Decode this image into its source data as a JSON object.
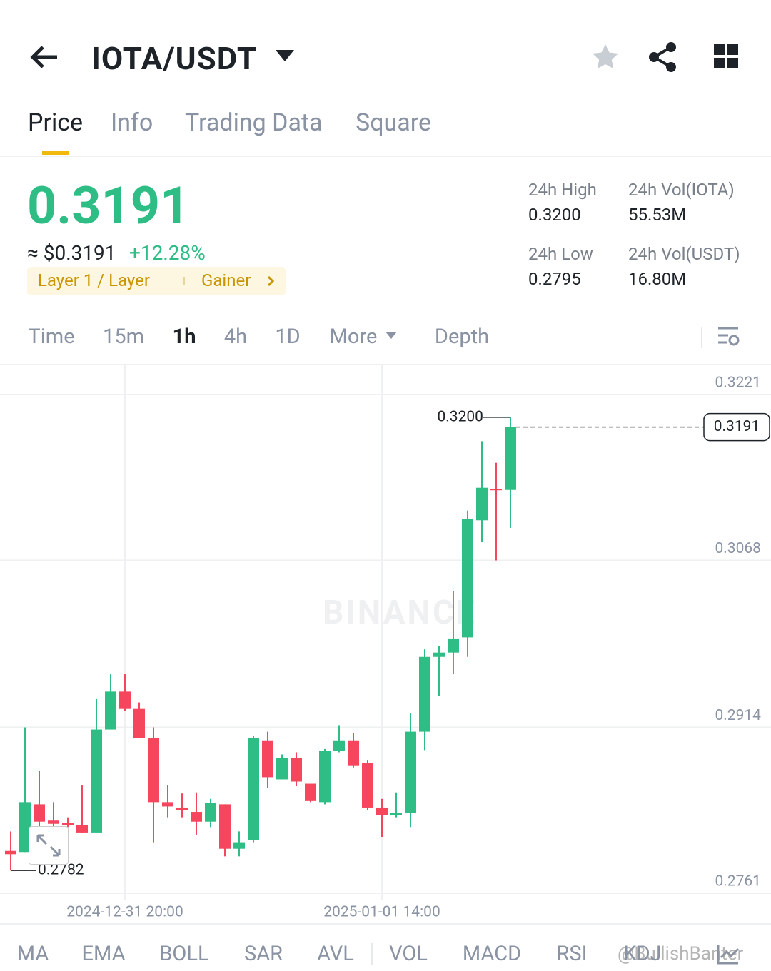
{
  "header": {
    "title": "IOTA/USDT"
  },
  "tabs": [
    "Price",
    "Info",
    "Trading Data",
    "Square"
  ],
  "ticker": {
    "price": "0.3191",
    "usd_price": "≈ $0.3191",
    "change": "+12.28%",
    "tags": [
      "Layer 1 / Layer",
      "Gainer"
    ],
    "stats": [
      {
        "label": "24h High",
        "value": "0.3200"
      },
      {
        "label": "24h Vol(IOTA)",
        "value": "55.53M"
      },
      {
        "label": "24h Low",
        "value": "0.2795"
      },
      {
        "label": "24h Vol(USDT)",
        "value": "16.80M"
      }
    ]
  },
  "intervals": [
    "Time",
    "15m",
    "1h",
    "4h",
    "1D",
    "More",
    "Depth"
  ],
  "indicators": [
    "MA",
    "EMA",
    "BOLL",
    "SAR",
    "AVL",
    "VOL",
    "MACD",
    "RSI",
    "KDJ"
  ],
  "watermark": "@BullishBanter",
  "chart_data": {
    "type": "candlestick",
    "watermark": "BINANCE",
    "categories": [
      null,
      null,
      null,
      null,
      null,
      null,
      null,
      null,
      "2024-12-31 20:00",
      null,
      null,
      null,
      null,
      null,
      null,
      null,
      null,
      null,
      null,
      null,
      null,
      null,
      null,
      null,
      null,
      null,
      "2025-01-01 14:00",
      null,
      null,
      null,
      null,
      null,
      null,
      null,
      null,
      null
    ],
    "open": [
      0.28,
      0.2799,
      0.2843,
      0.2828,
      0.2826,
      0.2824,
      0.2817,
      0.2912,
      0.2947,
      0.2931,
      0.2904,
      0.2845,
      0.284,
      0.2836,
      0.2827,
      0.2843,
      0.2802,
      0.281,
      0.2902,
      0.2866,
      0.2886,
      0.2862,
      0.2845,
      0.2892,
      0.2902,
      0.2881,
      0.284,
      0.2833,
      0.2835,
      0.291,
      0.2979,
      0.2983,
      0.2997,
      0.3105,
      0.3134,
      0.3133
    ],
    "high": [
      0.2818,
      0.2914,
      0.2874,
      0.2845,
      0.2831,
      0.2861,
      0.294,
      0.2963,
      0.2963,
      0.2937,
      0.2914,
      0.2861,
      0.2853,
      0.2854,
      0.2848,
      0.2843,
      0.2818,
      0.2906,
      0.291,
      0.2889,
      0.2891,
      0.2862,
      0.2894,
      0.2916,
      0.2909,
      0.2884,
      0.2848,
      0.2854,
      0.2927,
      0.2986,
      0.2989,
      0.304,
      0.3114,
      0.3178,
      0.3158,
      0.32
    ],
    "low": [
      0.2782,
      0.2799,
      0.2822,
      0.2822,
      0.2822,
      0.2817,
      0.2817,
      0.2912,
      0.2929,
      0.2904,
      0.2808,
      0.2831,
      0.2831,
      0.2815,
      0.2822,
      0.2795,
      0.2795,
      0.2808,
      0.2858,
      0.2866,
      0.286,
      0.2845,
      0.2843,
      0.2891,
      0.2877,
      0.2838,
      0.2813,
      0.2831,
      0.2822,
      0.2893,
      0.2943,
      0.2963,
      0.2979,
      0.3085,
      0.3068,
      0.3098
    ],
    "close": [
      0.2797,
      0.2845,
      0.2827,
      0.2825,
      0.2824,
      0.2817,
      0.2912,
      0.2947,
      0.2931,
      0.2904,
      0.2845,
      0.2841,
      0.2838,
      0.2827,
      0.2844,
      0.2802,
      0.2808,
      0.2904,
      0.2868,
      0.2886,
      0.2864,
      0.2846,
      0.2892,
      0.2902,
      0.2879,
      0.284,
      0.2833,
      0.2835,
      0.291,
      0.2979,
      0.2983,
      0.2996,
      0.3106,
      0.3135,
      0.3133,
      0.3191
    ],
    "up_color": "#2ebd85",
    "down_color": "#f6465d",
    "ylim": [
      0.2761,
      0.3248
    ],
    "yticks": [
      0.2761,
      0.2914,
      0.3068,
      0.3221
    ],
    "grid": true,
    "high_marker": {
      "value": 0.32,
      "label": "0.3200"
    },
    "low_marker": {
      "value": 0.2782,
      "label": "0.2782"
    },
    "last_price": {
      "value": 0.3191,
      "label": "0.3191"
    }
  }
}
